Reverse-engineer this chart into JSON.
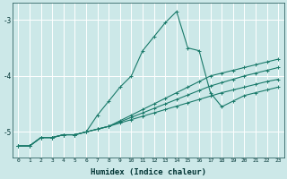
{
  "xlabel": "Humidex (Indice chaleur)",
  "bg_color": "#cce8e8",
  "grid_color": "#ffffff",
  "line_color": "#1a7a6a",
  "x_data": [
    0,
    1,
    2,
    3,
    4,
    5,
    6,
    7,
    8,
    9,
    10,
    11,
    12,
    13,
    14,
    15,
    16,
    17,
    18,
    19,
    20,
    21,
    22,
    23
  ],
  "series": [
    [
      -5.25,
      -5.25,
      -5.1,
      -5.1,
      -5.05,
      -5.05,
      -5.0,
      -4.95,
      -4.9,
      -4.8,
      -4.7,
      -4.6,
      -4.5,
      -4.4,
      -4.3,
      -4.2,
      -4.1,
      -4.0,
      -3.95,
      -3.9,
      -3.85,
      -3.8,
      -3.75,
      -3.7
    ],
    [
      -5.25,
      -5.25,
      -5.1,
      -5.1,
      -5.05,
      -5.05,
      -5.0,
      -4.95,
      -4.9,
      -4.82,
      -4.74,
      -4.66,
      -4.58,
      -4.5,
      -4.42,
      -4.34,
      -4.26,
      -4.18,
      -4.12,
      -4.06,
      -4.0,
      -3.95,
      -3.9,
      -3.85
    ],
    [
      -5.25,
      -5.25,
      -5.1,
      -5.1,
      -5.05,
      -5.05,
      -5.0,
      -4.95,
      -4.9,
      -4.84,
      -4.78,
      -4.72,
      -4.66,
      -4.6,
      -4.54,
      -4.48,
      -4.42,
      -4.36,
      -4.3,
      -4.25,
      -4.2,
      -4.15,
      -4.1,
      -4.06
    ],
    [
      -5.25,
      -5.25,
      -5.1,
      -5.1,
      -5.05,
      -5.05,
      -5.0,
      -4.7,
      -4.45,
      -4.2,
      -4.0,
      -3.55,
      -3.3,
      -3.05,
      -2.85,
      -3.5,
      -3.55,
      -4.3,
      -4.55,
      -4.45,
      -4.35,
      -4.3,
      -4.25,
      -4.2
    ]
  ],
  "ylim": [
    -5.45,
    -2.7
  ],
  "xlim": [
    -0.5,
    23.5
  ],
  "yticks": [
    -5,
    -4,
    -3
  ],
  "xticks": [
    0,
    1,
    2,
    3,
    4,
    5,
    6,
    7,
    8,
    9,
    10,
    11,
    12,
    13,
    14,
    15,
    16,
    17,
    18,
    19,
    20,
    21,
    22,
    23
  ],
  "marker": "+",
  "markersize": 3,
  "linewidth": 0.8
}
